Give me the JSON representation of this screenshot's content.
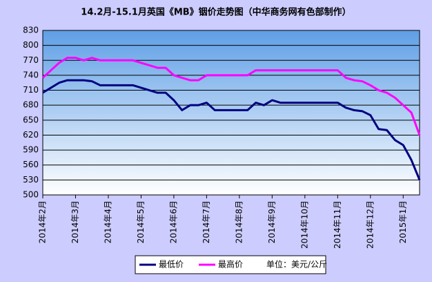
{
  "chart_data": {
    "type": "line",
    "title": "14.2月-15.1月英国《MB》铟价走势图（中华商务网有色部制作）",
    "categories": [
      "2014年2月",
      null,
      null,
      null,
      "2014年3月",
      null,
      null,
      null,
      "2014年4月",
      null,
      null,
      null,
      "2014年5月",
      null,
      null,
      null,
      "2014年6月",
      null,
      null,
      null,
      "2014年7月",
      null,
      null,
      null,
      "2014年8月",
      null,
      null,
      null,
      "2014年9月",
      null,
      null,
      null,
      "2014年10月",
      null,
      null,
      null,
      "2014年11月",
      null,
      null,
      null,
      "2014年12月",
      null,
      null,
      null,
      "2015年1月",
      null,
      null
    ],
    "series": [
      {
        "name": "最低价",
        "color": "#000080",
        "values": [
          705,
          715,
          725,
          730,
          730,
          730,
          728,
          720,
          720,
          720,
          720,
          720,
          715,
          710,
          705,
          705,
          690,
          670,
          680,
          680,
          685,
          670,
          670,
          670,
          670,
          670,
          685,
          680,
          690,
          685,
          685,
          685,
          685,
          685,
          685,
          685,
          685,
          675,
          670,
          668,
          660,
          632,
          630,
          610,
          600,
          570,
          530
        ]
      },
      {
        "name": "最高价",
        "color": "#ff00ff",
        "values": [
          735,
          750,
          765,
          775,
          775,
          770,
          775,
          770,
          770,
          770,
          770,
          770,
          765,
          760,
          755,
          755,
          740,
          735,
          730,
          730,
          740,
          740,
          740,
          740,
          740,
          740,
          750,
          750,
          750,
          750,
          750,
          750,
          750,
          750,
          750,
          750,
          750,
          735,
          730,
          728,
          720,
          710,
          705,
          695,
          680,
          665,
          620
        ]
      }
    ],
    "unit": "单位：美元/公斤",
    "ylim": [
      500,
      830
    ],
    "yticks": [
      500,
      530,
      560,
      590,
      620,
      650,
      680,
      710,
      740,
      770,
      800,
      830
    ],
    "grid": true
  }
}
